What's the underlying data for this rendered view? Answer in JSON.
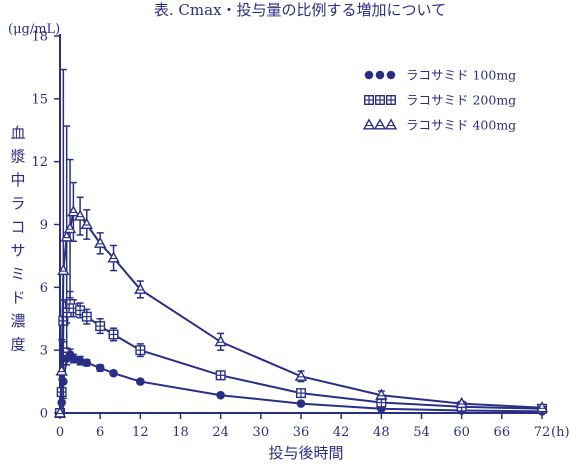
{
  "chart_data": {
    "type": "line",
    "title": "表. Cmax・投与量の比例する増加について",
    "xlabel": "投与後時間",
    "x_unit": "(h)",
    "y_unit": "(μg/mL)",
    "ylabel": "血漿中ラコサミド濃度",
    "xlim": [
      0,
      72
    ],
    "ylim": [
      0,
      18
    ],
    "x_ticks": [
      0,
      6,
      12,
      18,
      24,
      30,
      36,
      42,
      48,
      54,
      60,
      66,
      72
    ],
    "y_ticks": [
      0,
      3,
      6,
      9,
      12,
      15,
      18
    ],
    "grid": false,
    "legend_position": "top-right",
    "series": [
      {
        "name": "ラコサミド 100mg",
        "marker": "circle",
        "x": [
          0,
          0.25,
          0.5,
          1,
          1.5,
          2,
          3,
          4,
          6,
          8,
          12,
          24,
          36,
          48,
          60,
          72
        ],
        "y": [
          0,
          0.5,
          1.5,
          2.6,
          2.8,
          2.6,
          2.5,
          2.4,
          2.15,
          1.9,
          1.5,
          0.85,
          0.45,
          0.2,
          0.12,
          0.08
        ],
        "err": [
          0,
          0.3,
          0.8,
          0.3,
          0.25,
          0.2,
          0.2,
          0.15,
          0.15,
          0.1,
          0.1,
          0.07,
          0.06,
          0.05,
          0.04,
          0.03
        ]
      },
      {
        "name": "ラコサミド 200mg",
        "marker": "square",
        "x": [
          0,
          0.25,
          0.5,
          1,
          1.5,
          2,
          3,
          4,
          6,
          8,
          12,
          24,
          36,
          48,
          60,
          72
        ],
        "y": [
          0,
          1.0,
          4.4,
          4.8,
          5.2,
          5.0,
          4.9,
          4.6,
          4.15,
          3.75,
          3.0,
          1.8,
          0.95,
          0.5,
          0.3,
          0.2
        ],
        "err": [
          0,
          0.6,
          1.0,
          0.5,
          0.6,
          0.4,
          0.35,
          0.35,
          0.35,
          0.3,
          0.3,
          0.2,
          0.15,
          0.1,
          0.08,
          0.05
        ]
      },
      {
        "name": "ラコサミド 400mg",
        "marker": "triangle",
        "x": [
          0,
          0.25,
          0.5,
          1,
          1.5,
          2,
          3,
          4,
          6,
          8,
          12,
          24,
          36,
          48,
          60,
          72
        ],
        "y": [
          0,
          2.0,
          6.8,
          8.4,
          8.8,
          9.6,
          9.4,
          9.0,
          8.1,
          7.4,
          5.9,
          3.4,
          1.75,
          0.85,
          0.45,
          0.25
        ],
        "err": [
          0,
          1.5,
          9.6,
          5.3,
          3.3,
          1.4,
          0.9,
          0.7,
          0.5,
          0.6,
          0.4,
          0.4,
          0.25,
          0.2,
          0.1,
          0.05
        ]
      }
    ]
  }
}
